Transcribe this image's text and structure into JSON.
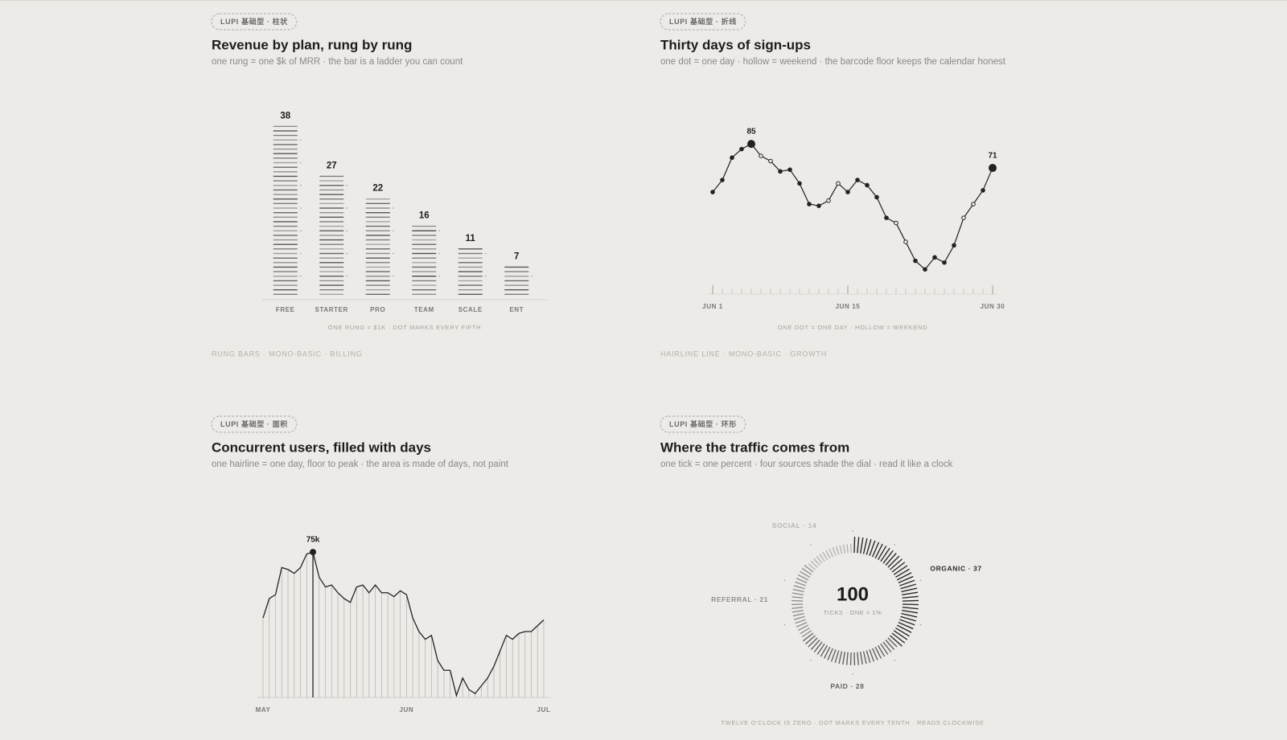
{
  "chart_data": [
    {
      "type": "rung-bar",
      "badge": "LUPI 基础型 · 柱状",
      "title": "Revenue by plan, rung by rung",
      "subtitle": "one rung = one $k of MRR · the bar is a ladder you can count",
      "categories": [
        "FREE",
        "STARTER",
        "PRO",
        "TEAM",
        "SCALE",
        "ENT"
      ],
      "values": [
        38,
        27,
        22,
        16,
        11,
        7
      ],
      "ylim": [
        0,
        40
      ],
      "dot_every": 5,
      "color": "#4a4a4a",
      "caption": "ONE RUNG = $1K · DOT MARKS EVERY FIFTH",
      "footer": "RUNG BARS · MONO-BASIC · BILLING"
    },
    {
      "type": "line",
      "badge": "LUPI 基础型 · 折线",
      "title": "Thirty days of sign-ups",
      "subtitle": "one dot = one day · hollow = weekend · the barcode floor keeps the calendar honest",
      "x": [
        1,
        2,
        3,
        4,
        5,
        6,
        7,
        8,
        9,
        10,
        11,
        12,
        13,
        14,
        15,
        16,
        17,
        18,
        19,
        20,
        21,
        22,
        23,
        24,
        25,
        26,
        27,
        28,
        29,
        30
      ],
      "values": [
        57,
        64,
        77,
        82,
        85,
        78,
        75,
        69,
        70,
        62,
        50,
        49,
        52,
        62,
        57,
        64,
        61,
        54,
        42,
        39,
        28,
        17,
        12,
        19,
        16,
        26,
        42,
        50,
        58,
        71
      ],
      "xlim": [
        1,
        30
      ],
      "xticks": [
        {
          "value": 1,
          "label": "JUN 1"
        },
        {
          "value": 15,
          "label": "JUN 15"
        },
        {
          "value": 30,
          "label": "JUN 30"
        }
      ],
      "ylim": [
        0,
        100
      ],
      "hollow_x": [
        6,
        7,
        13,
        14,
        20,
        21,
        27,
        28
      ],
      "labeled_x": [
        5,
        30
      ],
      "color": "#222222",
      "caption": "ONE DOT = ONE DAY · HOLLOW = WEEKEND",
      "footer": "HAIRLINE LINE · MONO-BASIC · GROWTH"
    },
    {
      "type": "area",
      "badge": "LUPI 基础型 · 面积",
      "title": "Concurrent users, filled with days",
      "subtitle": "one hairline = one day, floor to peak · the area is made of days, not paint",
      "categories": [
        "MAY",
        null,
        null,
        null,
        null,
        null,
        null,
        null,
        null,
        null,
        null,
        null,
        null,
        null,
        null,
        null,
        null,
        null,
        null,
        null,
        null,
        null,
        null,
        "JUN",
        null,
        null,
        null,
        null,
        null,
        null,
        null,
        null,
        null,
        null,
        null,
        null,
        null,
        null,
        null,
        null,
        null,
        null,
        null,
        null,
        null,
        "JUL"
      ],
      "values": [
        41,
        51,
        53,
        67,
        66,
        64,
        67,
        74,
        75,
        62,
        57,
        58,
        54,
        51,
        49,
        57,
        58,
        54,
        58,
        54,
        54,
        52,
        55,
        53,
        41,
        34,
        30,
        32,
        19,
        14,
        14,
        1,
        10,
        4,
        2,
        6,
        10,
        16,
        24,
        32,
        30,
        33,
        34,
        34,
        37,
        40
      ],
      "value_labels": [
        null,
        null,
        null,
        null,
        null,
        null,
        null,
        null,
        "75k",
        null,
        null,
        null,
        null,
        null,
        null,
        null,
        null,
        null,
        null,
        null,
        null,
        null,
        null,
        null,
        null,
        null,
        null,
        null,
        null,
        null,
        null,
        null,
        null,
        null,
        null,
        null,
        null,
        null,
        null,
        null,
        null,
        null,
        null,
        null,
        null,
        null
      ],
      "ylim": [
        0,
        80
      ],
      "color": "#222222"
    },
    {
      "type": "tick-donut",
      "badge": "LUPI 基础型 · 环形",
      "title": "Where the traffic comes from",
      "subtitle": "one tick = one percent · four sources shade the dial · read it like a clock",
      "values": [
        37,
        28,
        21,
        14
      ],
      "value_labels": [
        "ORGANIC · 37",
        "PAID · 28",
        "REFERRAL · 21",
        "SOCIAL · 14"
      ],
      "colors": [
        "#2a2a2a",
        "#626262",
        "#8f8f8f",
        "#b5b5b5"
      ],
      "total": 100,
      "total_label": "TICKS · ONE = 1%",
      "dot_every": 10,
      "caption": "TWELVE O'CLOCK IS ZERO · DOT MARKS EVERY TENTH · READS CLOCKWISE"
    }
  ]
}
